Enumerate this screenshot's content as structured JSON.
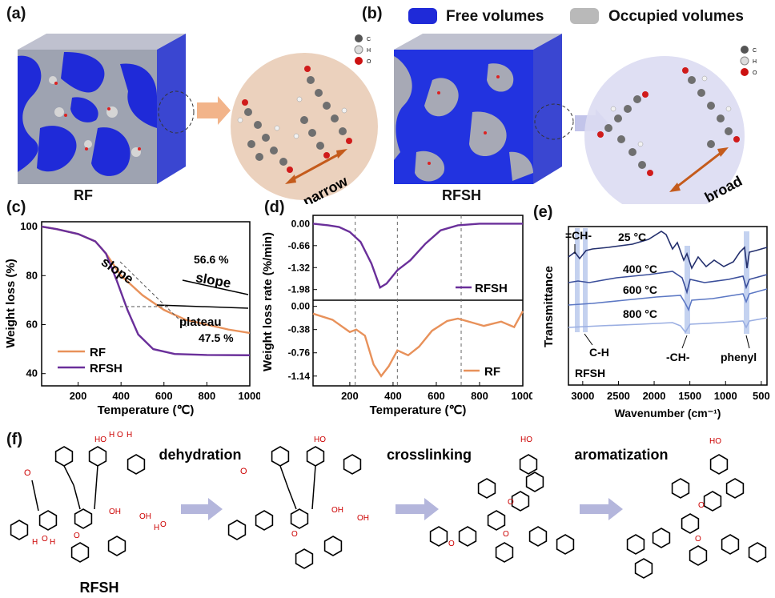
{
  "panels": {
    "a": {
      "label": "(a)",
      "box_label": "RF",
      "annotation": "narrow"
    },
    "b": {
      "label": "(b)",
      "box_label": "RFSH",
      "annotation": "broad",
      "legend_free": "Free volumes",
      "legend_occupied": "Occupied volumes"
    },
    "atoms": [
      "C",
      "H",
      "O"
    ],
    "f": {
      "label": "(f)",
      "steps": [
        "dehydration",
        "crosslinking",
        "aromatization"
      ],
      "start_label": "RFSH"
    }
  },
  "colors": {
    "rf": "#e8915a",
    "rfsh": "#6a2f9a",
    "blue": "#1f2ad8",
    "band": "#9db4e6"
  },
  "chart_data": [
    {
      "id": "c",
      "label": "(c)",
      "type": "line",
      "xlabel": "Temperature (℃)",
      "ylabel": "Weight loss (%)",
      "xlim": [
        30,
        1000
      ],
      "ylim": [
        35,
        102
      ],
      "xticks": [
        "200",
        "400",
        "600",
        "800",
        "1000"
      ],
      "yticks": [
        "40",
        "60",
        "80",
        "100"
      ],
      "series": [
        {
          "name": "RF",
          "x": [
            30,
            100,
            200,
            280,
            330,
            400,
            500,
            600,
            700,
            800,
            900,
            1000
          ],
          "y": [
            100,
            99,
            97,
            94,
            89,
            80,
            72,
            66,
            62,
            60,
            58,
            56.6
          ]
        },
        {
          "name": "RFSH",
          "x": [
            30,
            100,
            200,
            280,
            330,
            380,
            430,
            480,
            550,
            650,
            800,
            1000
          ],
          "y": [
            100,
            99,
            97,
            94,
            89,
            78,
            66,
            56,
            50,
            48,
            47.6,
            47.5
          ]
        }
      ],
      "annotations": [
        "56.6 %",
        "slope",
        "slope",
        "plateau",
        "47.5 %"
      ]
    },
    {
      "id": "d",
      "label": "(d)",
      "type": "line",
      "xlabel": "Temperature (℃)",
      "ylabel": "Weight loss rate (%/min)",
      "xlim": [
        30,
        1000
      ],
      "xticks": [
        "200",
        "400",
        "600",
        "800",
        "1000"
      ],
      "vlines": [
        225,
        420,
        715
      ],
      "subplots": [
        {
          "name": "RFSH",
          "yticks": [
            "0.00",
            "-0.66",
            "-1.32",
            "-1.98"
          ],
          "ylim": [
            -2.3,
            0.25
          ],
          "x": [
            30,
            100,
            150,
            200,
            250,
            300,
            340,
            370,
            420,
            480,
            550,
            620,
            700,
            800,
            900,
            1000
          ],
          "y": [
            0,
            -0.05,
            -0.1,
            -0.25,
            -0.55,
            -1.2,
            -1.92,
            -1.8,
            -1.4,
            -1.1,
            -0.6,
            -0.2,
            -0.05,
            0,
            0,
            0
          ]
        },
        {
          "name": "RF",
          "yticks": [
            "0.00",
            "-0.38",
            "-0.76",
            "-1.14"
          ],
          "ylim": [
            -1.3,
            0.1
          ],
          "x": [
            30,
            120,
            200,
            230,
            270,
            310,
            345,
            380,
            420,
            470,
            520,
            580,
            650,
            700,
            760,
            820,
            900,
            960,
            1000
          ],
          "y": [
            -0.12,
            -0.22,
            -0.42,
            -0.38,
            -0.48,
            -0.95,
            -1.14,
            -0.98,
            -0.72,
            -0.8,
            -0.66,
            -0.4,
            -0.24,
            -0.2,
            -0.26,
            -0.32,
            -0.25,
            -0.34,
            -0.08
          ]
        }
      ]
    },
    {
      "id": "e",
      "label": "(e)",
      "type": "line",
      "xlabel": "Wavenumber (cm⁻¹)",
      "ylabel": "Transmittance",
      "xticks": [
        "3000",
        "2500",
        "2000",
        "1500",
        "1000",
        "500"
      ],
      "series_labels": [
        "25 °C",
        "400 °C",
        "600 °C",
        "800 °C"
      ],
      "annotations": [
        "=CH-",
        "C-H",
        "-CH-",
        "phenyl",
        "RFSH"
      ]
    }
  ]
}
